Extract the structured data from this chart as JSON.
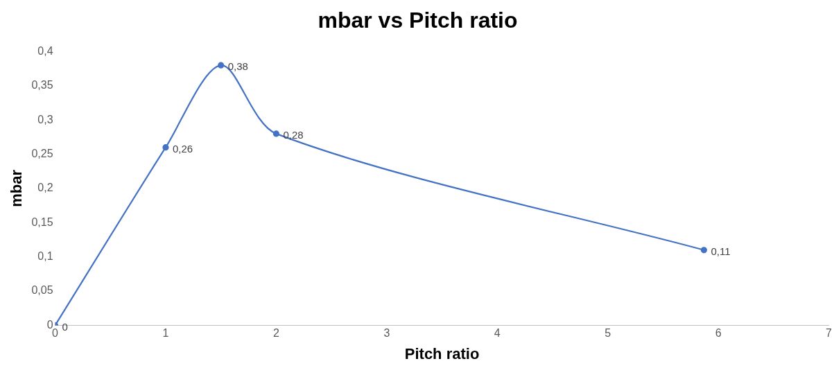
{
  "chart_data": {
    "type": "line",
    "title": "mbar vs Pitch ratio",
    "xlabel": "Pitch ratio",
    "ylabel": "mbar",
    "x": [
      0,
      1,
      1.5,
      2,
      5.87
    ],
    "series": [
      {
        "color": "#4472c4",
        "values": [
          0,
          0.26,
          0.38,
          0.28,
          0.11
        ],
        "value_labels": [
          "0",
          "0,26",
          "0,38",
          "0,28",
          "0,11"
        ]
      }
    ],
    "xlim": [
      0,
      7
    ],
    "xticks": [
      0,
      1,
      2,
      3,
      4,
      5,
      6,
      7
    ],
    "ylim": [
      0,
      0.4
    ],
    "yticks": [
      0,
      {
        "value": 0.05,
        "label": "0,05"
      },
      {
        "value": 0.1,
        "label": "0,1"
      },
      {
        "value": 0.15,
        "label": "0,15"
      },
      {
        "value": 0.2,
        "label": "0,2"
      },
      {
        "value": 0.25,
        "label": "0,25"
      },
      {
        "value": 0.3,
        "label": "0,3"
      },
      {
        "value": 0.35,
        "label": "0,35"
      },
      {
        "value": 0.4,
        "label": "0,4"
      }
    ],
    "grid": false,
    "legend": false,
    "marker": "circle",
    "line_style": "solid"
  }
}
